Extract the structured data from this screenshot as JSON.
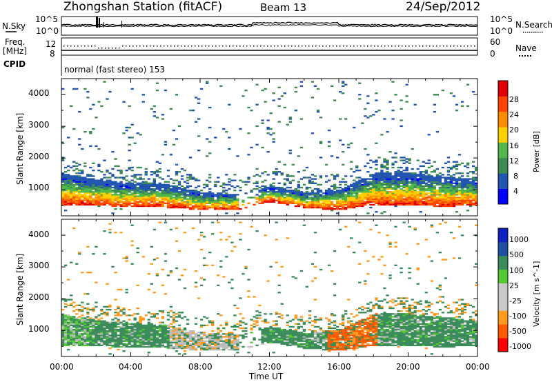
{
  "header": {
    "station": "Zhongshan Station (fitACF)",
    "beam": "Beam 13",
    "date": "24/Sep/2012"
  },
  "aux": {
    "nsky_label": "N.Sky",
    "nsearch_label": "N.Search",
    "nsky_ticks": [
      "10^5",
      "10^0"
    ],
    "nsearch_ticks": [
      "10^5",
      "10^0"
    ],
    "freq_label": "Freq.",
    "freq_unit": "[MHz]",
    "freq_ticks": [
      "12",
      "8"
    ],
    "nave_label": "Nave",
    "nave_ticks": [
      "60",
      "0"
    ],
    "cpid_label": "CPID",
    "cpid_text": "normal (fast stereo) 153"
  },
  "colors": {
    "power_scale": [
      "#0000ff",
      "#2255b0",
      "#3d8a52",
      "#4fb848",
      "#ffd000",
      "#ff8c00",
      "#ff4400",
      "#e00000"
    ],
    "velocity_scale": [
      "#ff0000",
      "#ff5a00",
      "#ff9a20",
      "#c8c8c8",
      "#c8c8c8",
      "#55c835",
      "#3a8c5a",
      "#2050a0",
      "#1020c0"
    ],
    "ground_scatter": "#bdbdbd"
  },
  "chart_data": [
    {
      "type": "heatmap",
      "panel": "power",
      "ylabel": "Slant Range [km]",
      "ylim": [
        180,
        4500
      ],
      "yticks": [
        "4000",
        "3000",
        "2000",
        "1000"
      ],
      "xlim": [
        "00:00",
        "24:00"
      ],
      "colorbar": {
        "label": "Power [dB]",
        "ticks": [
          "28",
          "24",
          "20",
          "16",
          "12",
          "8",
          "4"
        ],
        "range": [
          0,
          30
        ]
      },
      "scatter_band": [
        {
          "hour": 0,
          "lower": 500,
          "upper": 1500
        },
        {
          "hour": 2,
          "lower": 480,
          "upper": 1300
        },
        {
          "hour": 4,
          "lower": 440,
          "upper": 1200
        },
        {
          "hour": 6,
          "lower": 420,
          "upper": 1150
        },
        {
          "hour": 8,
          "lower": 350,
          "upper": 900
        },
        {
          "hour": 10,
          "lower": 340,
          "upper": 850
        },
        {
          "hour": 12,
          "lower": 600,
          "upper": 1100
        },
        {
          "hour": 14,
          "lower": 400,
          "upper": 900
        },
        {
          "hour": 16,
          "lower": 350,
          "upper": 1000
        },
        {
          "hour": 18,
          "lower": 500,
          "upper": 1500
        },
        {
          "hour": 20,
          "lower": 500,
          "upper": 1500
        },
        {
          "hour": 22,
          "lower": 450,
          "upper": 1400
        },
        {
          "hour": 24,
          "lower": 500,
          "upper": 1300
        }
      ]
    },
    {
      "type": "heatmap",
      "panel": "velocity",
      "ylabel": "Slant Range [km]",
      "ylim": [
        180,
        4500
      ],
      "yticks": [
        "4000",
        "3000",
        "2000",
        "1000"
      ],
      "xlabel": "Time UT",
      "xticks": [
        "00:00",
        "04:00",
        "08:00",
        "12:00",
        "16:00",
        "20:00",
        "00:00"
      ],
      "colorbar": {
        "label": "Velocity [m s^-1]",
        "ticks": [
          "1000",
          "500",
          "100",
          "25",
          "-25",
          "-100",
          "-500",
          "-1000"
        ],
        "range": [
          -1000,
          1000
        ]
      },
      "dominant_values": [
        {
          "hour": 0,
          "value": 100
        },
        {
          "hour": 4,
          "value": 100
        },
        {
          "hour": 8,
          "value": 25
        },
        {
          "hour": 12,
          "value": 500
        },
        {
          "hour": 16,
          "value": -500
        },
        {
          "hour": 20,
          "value": 500
        },
        {
          "hour": 24,
          "value": 100
        }
      ]
    }
  ]
}
